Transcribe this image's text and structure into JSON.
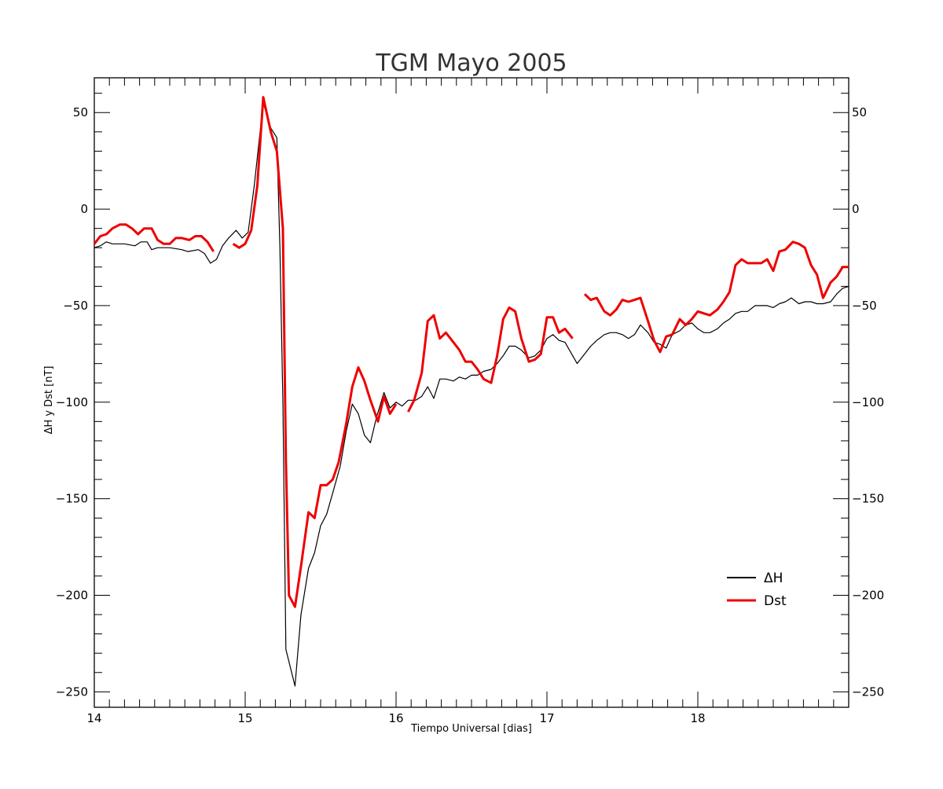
{
  "chart_data": {
    "type": "line",
    "title": "TGM Mayo 2005",
    "xlabel": "Tiempo Universal [dias]",
    "ylabel": "ΔH y Dst [nT]",
    "xlim": [
      14,
      19
    ],
    "ylim": [
      -258,
      68
    ],
    "x_ticks": [
      14,
      15,
      16,
      17,
      18
    ],
    "x_tick_labels": [
      "14",
      "15",
      "16",
      "17",
      "18"
    ],
    "y_ticks": [
      50,
      0,
      -50,
      -100,
      -150,
      -200,
      -250
    ],
    "y_tick_labels": [
      "50",
      "0",
      "−50",
      "−100",
      "−150",
      "−200",
      "−250"
    ],
    "grid": false,
    "legend_position": "bottom-right",
    "series": [
      {
        "name": "ΔH",
        "color": "#000000",
        "width": 1.2,
        "segments": [
          [
            [
              14.0,
              -20
            ],
            [
              14.04,
              -19
            ],
            [
              14.08,
              -17
            ],
            [
              14.12,
              -18
            ],
            [
              14.2,
              -18
            ],
            [
              14.27,
              -19
            ],
            [
              14.31,
              -17
            ],
            [
              14.35,
              -17
            ],
            [
              14.38,
              -21
            ],
            [
              14.42,
              -20
            ],
            [
              14.5,
              -20
            ],
            [
              14.58,
              -21
            ],
            [
              14.62,
              -22
            ],
            [
              14.69,
              -21
            ],
            [
              14.73,
              -23
            ],
            [
              14.77,
              -28
            ],
            [
              14.81,
              -26
            ],
            [
              14.85,
              -19
            ],
            [
              14.89,
              -15
            ],
            [
              14.94,
              -11
            ],
            [
              14.98,
              -15
            ],
            [
              15.02,
              -12
            ],
            [
              15.06,
              12
            ],
            [
              15.12,
              55
            ],
            [
              15.17,
              42
            ],
            [
              15.21,
              37
            ],
            [
              15.23,
              -20
            ],
            [
              15.25,
              -100
            ],
            [
              15.27,
              -228
            ],
            [
              15.33,
              -247
            ],
            [
              15.37,
              -210
            ],
            [
              15.42,
              -186
            ],
            [
              15.46,
              -178
            ],
            [
              15.5,
              -164
            ],
            [
              15.54,
              -158
            ],
            [
              15.58,
              -147
            ],
            [
              15.63,
              -133
            ],
            [
              15.67,
              -115
            ],
            [
              15.71,
              -101
            ],
            [
              15.75,
              -106
            ],
            [
              15.79,
              -117
            ],
            [
              15.83,
              -121
            ],
            [
              15.87,
              -108
            ],
            [
              15.92,
              -95
            ],
            [
              15.96,
              -103
            ],
            [
              16.0,
              -100
            ],
            [
              16.04,
              -102
            ],
            [
              16.08,
              -99
            ],
            [
              16.13,
              -99
            ],
            [
              16.17,
              -97
            ],
            [
              16.21,
              -92
            ],
            [
              16.25,
              -98
            ],
            [
              16.29,
              -88
            ],
            [
              16.33,
              -88
            ],
            [
              16.38,
              -89
            ],
            [
              16.42,
              -87
            ],
            [
              16.46,
              -88
            ],
            [
              16.5,
              -86
            ],
            [
              16.54,
              -86
            ],
            [
              16.58,
              -84
            ],
            [
              16.63,
              -83
            ],
            [
              16.67,
              -80
            ],
            [
              16.71,
              -76
            ],
            [
              16.75,
              -71
            ],
            [
              16.79,
              -71
            ],
            [
              16.83,
              -73
            ],
            [
              16.88,
              -77
            ],
            [
              16.92,
              -76
            ],
            [
              16.96,
              -73
            ],
            [
              17.0,
              -67
            ],
            [
              17.04,
              -65
            ],
            [
              17.08,
              -68
            ],
            [
              17.12,
              -69
            ],
            [
              17.2,
              -80
            ],
            [
              17.25,
              -75
            ],
            [
              17.29,
              -71
            ],
            [
              17.33,
              -68
            ],
            [
              17.38,
              -65
            ],
            [
              17.42,
              -64
            ],
            [
              17.46,
              -64
            ],
            [
              17.5,
              -65
            ],
            [
              17.54,
              -67
            ],
            [
              17.58,
              -65
            ],
            [
              17.62,
              -60
            ],
            [
              17.67,
              -64
            ],
            [
              17.71,
              -69
            ],
            [
              17.75,
              -70
            ],
            [
              17.79,
              -72
            ],
            [
              17.83,
              -65
            ],
            [
              17.88,
              -63
            ],
            [
              17.92,
              -60
            ],
            [
              17.96,
              -59
            ],
            [
              18.0,
              -62
            ],
            [
              18.04,
              -64
            ],
            [
              18.08,
              -64
            ],
            [
              18.13,
              -62
            ],
            [
              18.17,
              -59
            ],
            [
              18.21,
              -57
            ],
            [
              18.25,
              -54
            ],
            [
              18.29,
              -53
            ],
            [
              18.33,
              -53
            ],
            [
              18.38,
              -50
            ],
            [
              18.42,
              -50
            ],
            [
              18.46,
              -50
            ],
            [
              18.5,
              -51
            ],
            [
              18.54,
              -49
            ],
            [
              18.58,
              -48
            ],
            [
              18.62,
              -46
            ],
            [
              18.67,
              -49
            ],
            [
              18.71,
              -48
            ],
            [
              18.75,
              -48
            ],
            [
              18.79,
              -49
            ],
            [
              18.83,
              -49
            ],
            [
              18.88,
              -48
            ],
            [
              18.92,
              -44
            ],
            [
              18.96,
              -41
            ],
            [
              19.0,
              -40
            ]
          ]
        ]
      },
      {
        "name": "Dst",
        "color": "#ee0000",
        "width": 3,
        "segments": [
          [
            [
              14.0,
              -18
            ],
            [
              14.04,
              -14
            ],
            [
              14.08,
              -13
            ],
            [
              14.12,
              -10
            ],
            [
              14.17,
              -8
            ],
            [
              14.21,
              -8
            ],
            [
              14.25,
              -10
            ],
            [
              14.29,
              -13
            ],
            [
              14.33,
              -10
            ],
            [
              14.38,
              -10
            ],
            [
              14.42,
              -16
            ],
            [
              14.46,
              -18
            ],
            [
              14.5,
              -18
            ],
            [
              14.54,
              -15
            ],
            [
              14.58,
              -15
            ],
            [
              14.63,
              -16
            ],
            [
              14.67,
              -14
            ],
            [
              14.71,
              -14
            ],
            [
              14.75,
              -17
            ],
            [
              14.79,
              -22
            ]
          ],
          [
            [
              14.92,
              -18
            ],
            [
              14.96,
              -20
            ],
            [
              15.0,
              -18
            ],
            [
              15.04,
              -11
            ],
            [
              15.08,
              12
            ],
            [
              15.12,
              58
            ],
            [
              15.17,
              40
            ],
            [
              15.21,
              30
            ],
            [
              15.25,
              -10
            ],
            [
              15.27,
              -130
            ],
            [
              15.29,
              -200
            ],
            [
              15.33,
              -206
            ],
            [
              15.37,
              -185
            ],
            [
              15.42,
              -157
            ],
            [
              15.46,
              -160
            ],
            [
              15.5,
              -143
            ],
            [
              15.54,
              -143
            ],
            [
              15.58,
              -140
            ],
            [
              15.62,
              -131
            ],
            [
              15.67,
              -111
            ],
            [
              15.71,
              -92
            ],
            [
              15.75,
              -82
            ],
            [
              15.79,
              -89
            ],
            [
              15.83,
              -99
            ],
            [
              15.88,
              -110
            ],
            [
              15.92,
              -97
            ],
            [
              15.96,
              -106
            ],
            [
              16.0,
              -101
            ]
          ],
          [
            [
              16.08,
              -105
            ],
            [
              16.12,
              -99
            ],
            [
              16.17,
              -85
            ],
            [
              16.21,
              -58
            ],
            [
              16.25,
              -55
            ],
            [
              16.29,
              -67
            ],
            [
              16.33,
              -64
            ],
            [
              16.38,
              -69
            ],
            [
              16.42,
              -73
            ],
            [
              16.46,
              -79
            ],
            [
              16.5,
              -79
            ],
            [
              16.54,
              -83
            ],
            [
              16.58,
              -88
            ],
            [
              16.63,
              -90
            ],
            [
              16.67,
              -76
            ],
            [
              16.71,
              -57
            ],
            [
              16.75,
              -51
            ],
            [
              16.79,
              -53
            ],
            [
              16.83,
              -67
            ],
            [
              16.88,
              -79
            ],
            [
              16.92,
              -78
            ],
            [
              16.96,
              -75
            ],
            [
              17.0,
              -56
            ],
            [
              17.04,
              -56
            ],
            [
              17.08,
              -64
            ],
            [
              17.12,
              -62
            ],
            [
              17.17,
              -67
            ]
          ],
          [
            [
              17.25,
              -44
            ],
            [
              17.29,
              -47
            ],
            [
              17.33,
              -46
            ],
            [
              17.38,
              -53
            ],
            [
              17.42,
              -55
            ],
            [
              17.46,
              -52
            ],
            [
              17.5,
              -47
            ],
            [
              17.54,
              -48
            ],
            [
              17.58,
              -47
            ],
            [
              17.62,
              -46
            ],
            [
              17.67,
              -58
            ],
            [
              17.71,
              -68
            ],
            [
              17.75,
              -74
            ],
            [
              17.79,
              -66
            ],
            [
              17.83,
              -65
            ],
            [
              17.88,
              -57
            ],
            [
              17.92,
              -60
            ],
            [
              17.96,
              -57
            ],
            [
              18.0,
              -53
            ],
            [
              18.04,
              -54
            ],
            [
              18.08,
              -55
            ],
            [
              18.13,
              -52
            ],
            [
              18.17,
              -48
            ],
            [
              18.21,
              -43
            ],
            [
              18.25,
              -29
            ],
            [
              18.29,
              -26
            ],
            [
              18.33,
              -28
            ],
            [
              18.38,
              -28
            ],
            [
              18.42,
              -28
            ],
            [
              18.46,
              -26
            ],
            [
              18.5,
              -32
            ],
            [
              18.54,
              -22
            ],
            [
              18.58,
              -21
            ],
            [
              18.63,
              -17
            ],
            [
              18.67,
              -18
            ],
            [
              18.71,
              -20
            ],
            [
              18.75,
              -29
            ],
            [
              18.79,
              -34
            ],
            [
              18.83,
              -46
            ],
            [
              18.88,
              -38
            ],
            [
              18.92,
              -35
            ],
            [
              18.96,
              -30
            ],
            [
              19.0,
              -30
            ]
          ]
        ]
      }
    ]
  }
}
